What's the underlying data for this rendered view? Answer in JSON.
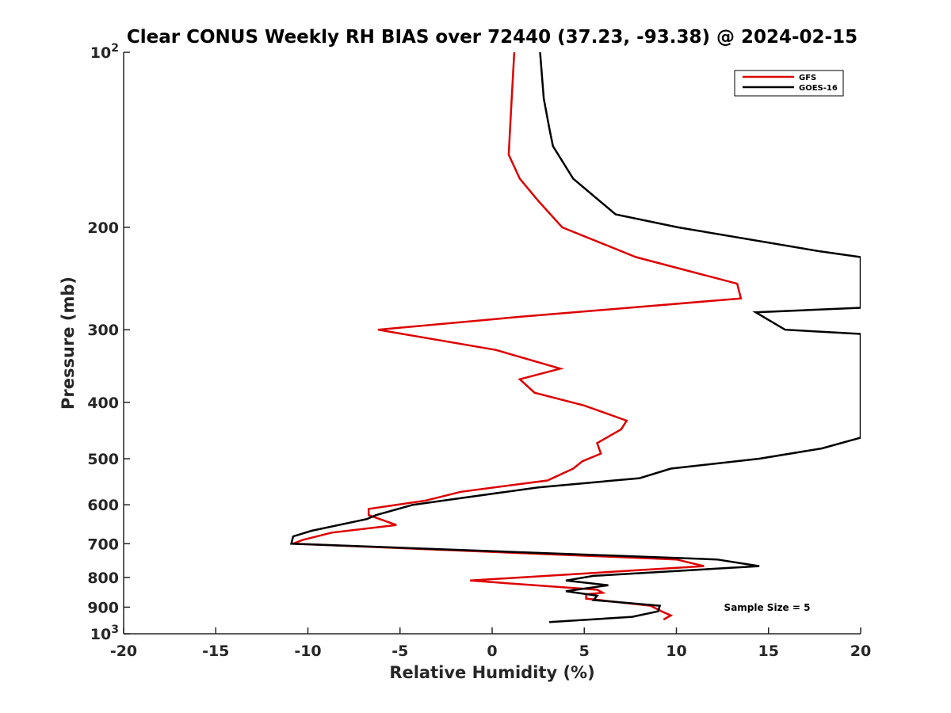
{
  "chart_data": {
    "type": "line",
    "title": "Clear CONUS Weekly RH BIAS over 72440 (37.23, -93.38) @ 2024-02-15",
    "xlabel": "Relative Humidity (%)",
    "ylabel": "Pressure (mb)",
    "xlim": [
      -20,
      20
    ],
    "ylim": [
      100,
      1000
    ],
    "y_scale": "log",
    "y_reversed": true,
    "grid": false,
    "legend_position": "top-right",
    "x_ticks": [
      -20,
      -15,
      -10,
      -5,
      0,
      5,
      10,
      15,
      20
    ],
    "x_tick_labels": [
      "-20",
      "-15",
      "-10",
      "-5",
      "0",
      "5",
      "10",
      "15",
      "20"
    ],
    "y_ticks": [
      100,
      200,
      300,
      400,
      500,
      600,
      700,
      800,
      900,
      1000
    ],
    "y_tick_labels": [
      {
        "base": "10",
        "exp": "2"
      },
      {
        "base": "200"
      },
      {
        "base": "300"
      },
      {
        "base": "400"
      },
      {
        "base": "500"
      },
      {
        "base": "600"
      },
      {
        "base": "700"
      },
      {
        "base": "800"
      },
      {
        "base": "900"
      },
      {
        "base": "10",
        "exp": "3"
      }
    ],
    "annotation": "Sample Size = 5",
    "series": [
      {
        "name": "GFS",
        "color": "#dd0000",
        "points": [
          [
            1.2,
            100
          ],
          [
            1.0,
            130
          ],
          [
            0.9,
            150
          ],
          [
            1.5,
            165
          ],
          [
            2.5,
            180
          ],
          [
            3.8,
            200
          ],
          [
            7.8,
            225
          ],
          [
            13.3,
            250
          ],
          [
            13.5,
            265
          ],
          [
            1.5,
            285
          ],
          [
            -6.2,
            300
          ],
          [
            0.2,
            325
          ],
          [
            3.7,
            350
          ],
          [
            1.5,
            365
          ],
          [
            2.3,
            385
          ],
          [
            5.0,
            405
          ],
          [
            7.3,
            430
          ],
          [
            7.0,
            445
          ],
          [
            5.7,
            470
          ],
          [
            5.9,
            490
          ],
          [
            4.9,
            505
          ],
          [
            4.4,
            520
          ],
          [
            3.0,
            545
          ],
          [
            -1.7,
            570
          ],
          [
            -3.6,
            590
          ],
          [
            -6.7,
            610
          ],
          [
            -6.7,
            625
          ],
          [
            -6.1,
            635
          ],
          [
            -5.2,
            650
          ],
          [
            -8.7,
            670
          ],
          [
            -10.3,
            690
          ],
          [
            -10.8,
            700
          ],
          [
            10.0,
            745
          ],
          [
            11.5,
            765
          ],
          [
            -1.2,
            810
          ],
          [
            5.7,
            840
          ],
          [
            6.0,
            850
          ],
          [
            5.1,
            855
          ],
          [
            5.1,
            870
          ],
          [
            8.6,
            895
          ],
          [
            9.2,
            915
          ],
          [
            9.7,
            930
          ],
          [
            9.3,
            945
          ]
        ]
      },
      {
        "name": "GOES-16",
        "color": "#000000",
        "points": [
          [
            2.6,
            100
          ],
          [
            2.8,
            120
          ],
          [
            3.1,
            135
          ],
          [
            3.3,
            145
          ],
          [
            4.4,
            165
          ],
          [
            6.7,
            190
          ],
          [
            10.1,
            200
          ],
          [
            17.8,
            220
          ],
          [
            20.0,
            225
          ],
          [
            20.0,
            275
          ],
          [
            14.3,
            280
          ],
          [
            15.9,
            300
          ],
          [
            20.0,
            305
          ],
          [
            20.0,
            460
          ],
          [
            17.9,
            480
          ],
          [
            14.5,
            500
          ],
          [
            9.7,
            520
          ],
          [
            8.0,
            540
          ],
          [
            2.5,
            560
          ],
          [
            -4.3,
            600
          ],
          [
            -6.3,
            625
          ],
          [
            -6.8,
            635
          ],
          [
            -9.8,
            665
          ],
          [
            -10.8,
            680
          ],
          [
            -10.9,
            700
          ],
          [
            12.2,
            745
          ],
          [
            14.5,
            765
          ],
          [
            5.5,
            795
          ],
          [
            4.0,
            810
          ],
          [
            6.3,
            825
          ],
          [
            4.0,
            845
          ],
          [
            5.7,
            860
          ],
          [
            5.5,
            875
          ],
          [
            9.1,
            895
          ],
          [
            9.0,
            915
          ],
          [
            7.6,
            935
          ],
          [
            3.1,
            955
          ]
        ]
      }
    ]
  }
}
